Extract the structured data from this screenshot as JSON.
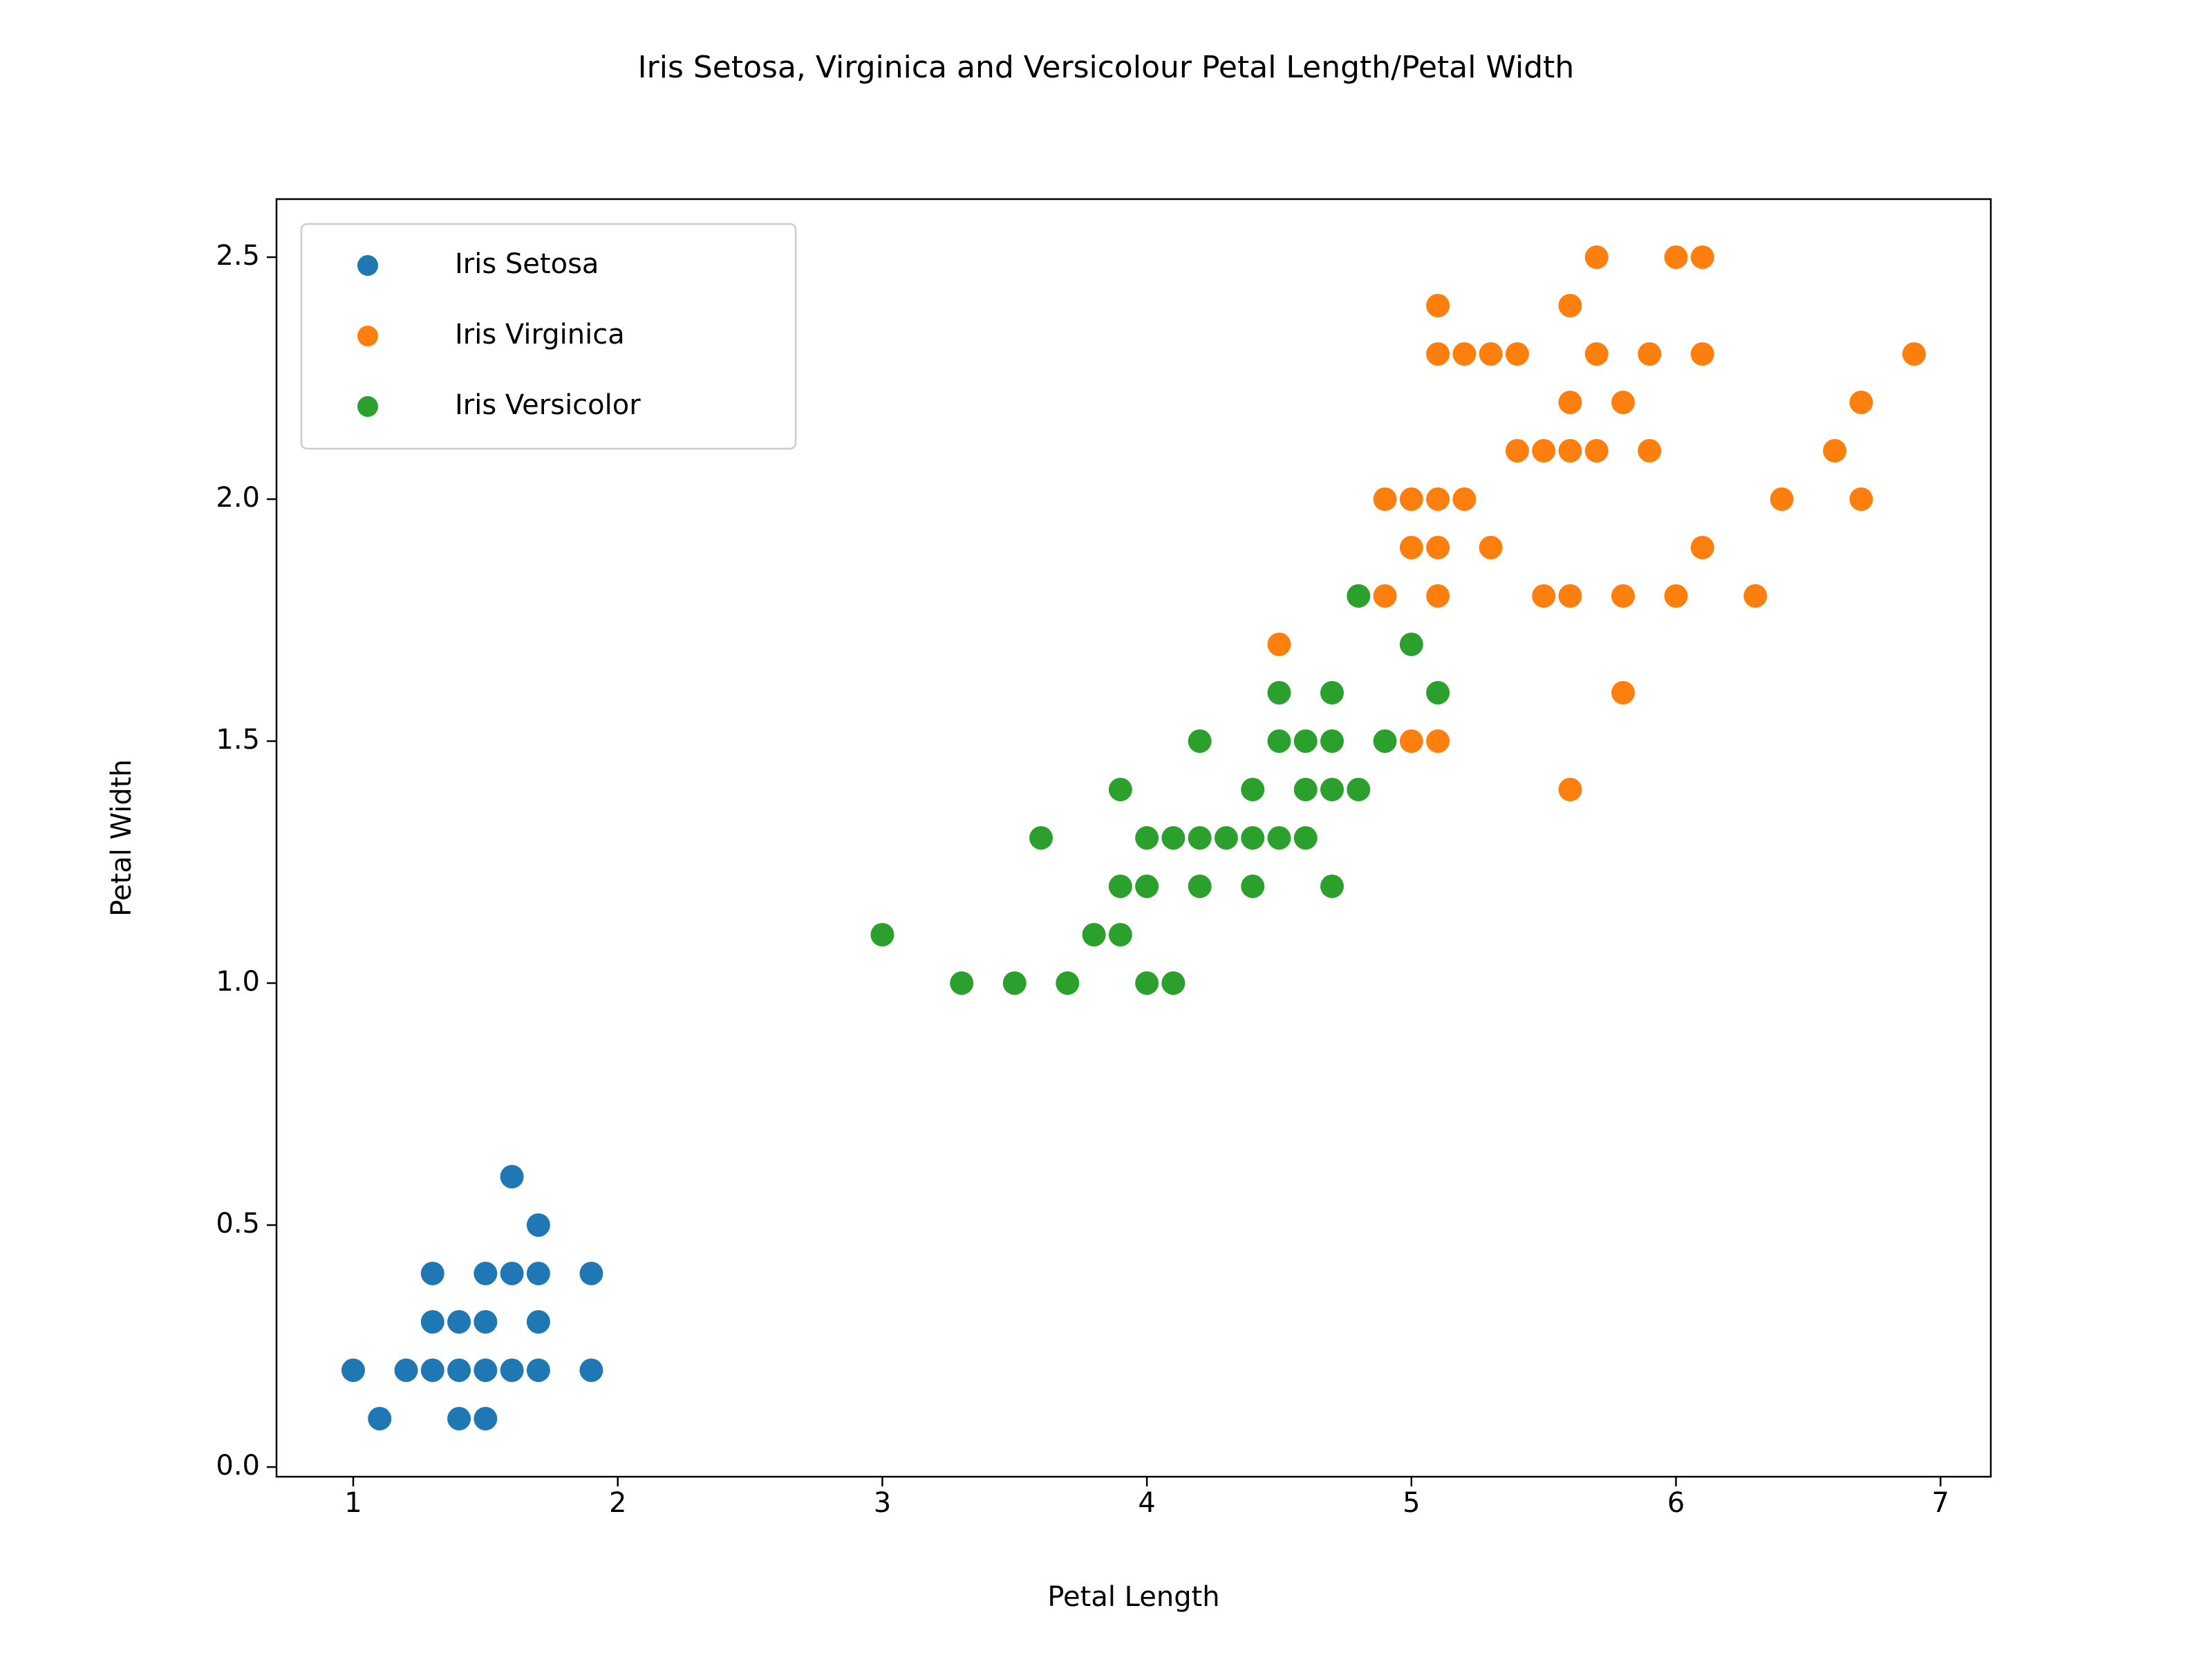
{
  "chart_data": {
    "type": "scatter",
    "title": "Iris Setosa, Virginica and Versicolour Petal Length/Petal Width",
    "xlabel": "Petal Length",
    "ylabel": "Petal Width",
    "xlim": [
      0.71,
      7.19
    ],
    "ylim": [
      -0.02,
      2.62
    ],
    "xticks": [
      1,
      2,
      3,
      4,
      5,
      6,
      7
    ],
    "xtick_labels": [
      "1",
      "2",
      "3",
      "4",
      "5",
      "6",
      "7"
    ],
    "yticks": [
      0.0,
      0.5,
      1.0,
      1.5,
      2.0,
      2.5
    ],
    "ytick_labels": [
      "0.0",
      "0.5",
      "1.0",
      "1.5",
      "2.0",
      "2.5"
    ],
    "grid": false,
    "legend_position": "top-left",
    "series": [
      {
        "name": "Iris Setosa",
        "color": "#1f77b4",
        "points": [
          [
            1.0,
            0.2
          ],
          [
            1.1,
            0.1
          ],
          [
            1.2,
            0.2
          ],
          [
            1.3,
            0.2
          ],
          [
            1.3,
            0.3
          ],
          [
            1.3,
            0.4
          ],
          [
            1.4,
            0.1
          ],
          [
            1.4,
            0.2
          ],
          [
            1.4,
            0.3
          ],
          [
            1.5,
            0.1
          ],
          [
            1.5,
            0.2
          ],
          [
            1.5,
            0.3
          ],
          [
            1.5,
            0.4
          ],
          [
            1.6,
            0.2
          ],
          [
            1.6,
            0.4
          ],
          [
            1.6,
            0.6
          ],
          [
            1.7,
            0.2
          ],
          [
            1.7,
            0.3
          ],
          [
            1.7,
            0.4
          ],
          [
            1.7,
            0.5
          ],
          [
            1.9,
            0.2
          ],
          [
            1.9,
            0.4
          ]
        ]
      },
      {
        "name": "Iris Virginica",
        "color": "#ff7f0e",
        "points": [
          [
            4.5,
            1.7
          ],
          [
            4.9,
            1.8
          ],
          [
            4.9,
            2.0
          ],
          [
            5.0,
            1.5
          ],
          [
            5.0,
            1.9
          ],
          [
            5.0,
            2.0
          ],
          [
            5.1,
            1.5
          ],
          [
            5.1,
            1.8
          ],
          [
            5.1,
            1.9
          ],
          [
            5.1,
            2.0
          ],
          [
            5.1,
            2.3
          ],
          [
            5.1,
            2.4
          ],
          [
            5.2,
            2.0
          ],
          [
            5.2,
            2.3
          ],
          [
            5.3,
            1.9
          ],
          [
            5.3,
            2.3
          ],
          [
            5.4,
            2.1
          ],
          [
            5.4,
            2.3
          ],
          [
            5.5,
            1.8
          ],
          [
            5.5,
            2.1
          ],
          [
            5.6,
            1.4
          ],
          [
            5.6,
            1.8
          ],
          [
            5.6,
            2.1
          ],
          [
            5.6,
            2.2
          ],
          [
            5.6,
            2.4
          ],
          [
            5.7,
            2.1
          ],
          [
            5.7,
            2.3
          ],
          [
            5.7,
            2.5
          ],
          [
            5.8,
            1.6
          ],
          [
            5.8,
            1.8
          ],
          [
            5.8,
            2.2
          ],
          [
            5.9,
            2.1
          ],
          [
            5.9,
            2.3
          ],
          [
            6.0,
            1.8
          ],
          [
            6.0,
            2.5
          ],
          [
            6.1,
            1.9
          ],
          [
            6.1,
            2.3
          ],
          [
            6.1,
            2.5
          ],
          [
            6.3,
            1.8
          ],
          [
            6.4,
            2.0
          ],
          [
            6.6,
            2.1
          ],
          [
            6.7,
            2.0
          ],
          [
            6.7,
            2.2
          ],
          [
            6.9,
            2.3
          ]
        ]
      },
      {
        "name": "Iris Versicolor",
        "color": "#2ca02c",
        "points": [
          [
            3.0,
            1.1
          ],
          [
            3.3,
            1.0
          ],
          [
            3.5,
            1.0
          ],
          [
            3.6,
            1.3
          ],
          [
            3.7,
            1.0
          ],
          [
            3.8,
            1.1
          ],
          [
            3.9,
            1.1
          ],
          [
            3.9,
            1.2
          ],
          [
            3.9,
            1.4
          ],
          [
            4.0,
            1.0
          ],
          [
            4.0,
            1.2
          ],
          [
            4.0,
            1.3
          ],
          [
            4.1,
            1.0
          ],
          [
            4.1,
            1.3
          ],
          [
            4.2,
            1.2
          ],
          [
            4.2,
            1.3
          ],
          [
            4.2,
            1.5
          ],
          [
            4.3,
            1.3
          ],
          [
            4.4,
            1.2
          ],
          [
            4.4,
            1.3
          ],
          [
            4.4,
            1.4
          ],
          [
            4.5,
            1.3
          ],
          [
            4.5,
            1.5
          ],
          [
            4.5,
            1.6
          ],
          [
            4.6,
            1.3
          ],
          [
            4.6,
            1.4
          ],
          [
            4.6,
            1.5
          ],
          [
            4.7,
            1.2
          ],
          [
            4.7,
            1.4
          ],
          [
            4.7,
            1.5
          ],
          [
            4.7,
            1.6
          ],
          [
            4.8,
            1.4
          ],
          [
            4.8,
            1.8
          ],
          [
            4.9,
            1.5
          ],
          [
            5.0,
            1.7
          ],
          [
            5.1,
            1.6
          ]
        ]
      }
    ]
  }
}
